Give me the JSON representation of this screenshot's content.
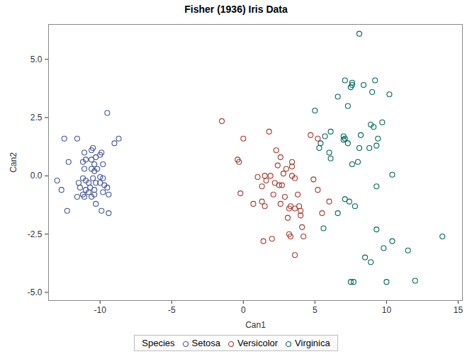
{
  "chart_data": {
    "type": "scatter",
    "title": "Fisher (1936) Iris Data",
    "x_label": "Can1",
    "y_label": "Can2",
    "xlim": [
      -13.6,
      15.3
    ],
    "ylim": [
      -5.35,
      6.5
    ],
    "xticks": [
      -10,
      -5,
      0,
      5,
      10,
      15
    ],
    "yticks": [
      {
        "value": 5,
        "label": "5.0"
      },
      {
        "value": 2.5,
        "label": "2.5"
      },
      {
        "value": 0,
        "label": "0.0"
      },
      {
        "value": -2.5,
        "label": "-2.5"
      },
      {
        "value": -5,
        "label": "-5.0"
      }
    ],
    "grid": false,
    "legend": "bottom",
    "legend_title": "Species",
    "series": [
      {
        "name": "Setosa",
        "color": "#445694",
        "marker": "circle",
        "x": [
          -9.5,
          -12.5,
          -11.6,
          -12.2,
          -8.7,
          -9.0,
          -13.0,
          -12.7,
          -12.3,
          -9.9,
          -10.0,
          -10.5,
          -10.6,
          -11.1,
          -11.0,
          -11.2,
          -10.6,
          -10.4,
          -11.1,
          -10.6,
          -10.3,
          -10.2,
          -10.4,
          -9.8,
          -10.5,
          -10.0,
          -9.8,
          -11.5,
          -11.2,
          -11.0,
          -10.8,
          -10.7,
          -10.3,
          -10.0,
          -9.7,
          -9.5,
          -11.4,
          -11.0,
          -10.4,
          -9.8,
          -11.6,
          -11.2,
          -11.1,
          -10.6,
          -10.4,
          -9.4,
          -10.3,
          -9.9,
          -9.4,
          -10.8
        ],
        "y": [
          2.7,
          1.6,
          1.6,
          0.6,
          1.6,
          1.4,
          -0.2,
          -0.6,
          -1.5,
          1.0,
          0.9,
          1.2,
          1.1,
          1.0,
          0.7,
          0.6,
          0.7,
          0.5,
          0.3,
          0.3,
          0.8,
          0.3,
          0.2,
          0.5,
          -0.1,
          -0.05,
          -0.1,
          -0.3,
          -0.1,
          -0.2,
          -0.3,
          -0.5,
          -0.3,
          -0.3,
          -0.4,
          -0.5,
          -0.5,
          -0.6,
          -0.6,
          -0.7,
          -0.9,
          -0.8,
          -0.9,
          -0.9,
          -0.8,
          -0.8,
          -1.2,
          -1.5,
          -1.6,
          -0.7
        ]
      },
      {
        "name": "Versicolor",
        "color": "#A23A2E",
        "marker": "circle",
        "x": [
          -1.5,
          0.0,
          1.8,
          4.7,
          5.2,
          -0.4,
          -0.3,
          -0.2,
          0.7,
          1.0,
          1.3,
          1.5,
          1.6,
          1.9,
          1.3,
          1.5,
          1.4,
          2.0,
          2.3,
          2.4,
          2.6,
          2.2,
          2.5,
          2.7,
          2.1,
          2.6,
          2.9,
          3.2,
          3.3,
          3.6,
          3.1,
          3.2,
          3.3,
          3.6,
          3.4,
          3.4,
          3.4,
          3.6,
          3.8,
          4.0,
          4.1,
          4.2,
          3.9,
          4.0,
          4.9,
          5.2,
          5.5,
          6.0,
          3.0,
          2.8
        ],
        "y": [
          2.35,
          1.6,
          1.9,
          1.75,
          1.6,
          0.7,
          0.6,
          -0.75,
          -1.2,
          -0.05,
          -0.45,
          0.0,
          -0.2,
          0.0,
          -1.1,
          -1.3,
          -2.8,
          -2.7,
          1.1,
          0.45,
          0.8,
          -0.3,
          -0.4,
          -0.4,
          -0.8,
          -1.2,
          -0.9,
          -1.4,
          -1.3,
          -1.4,
          -1.8,
          -2.5,
          -2.6,
          -3.4,
          0.6,
          0.4,
          0.0,
          -0.1,
          -0.8,
          -1.7,
          -2.2,
          -2.6,
          -1.3,
          -1.5,
          -0.15,
          -0.6,
          -1.6,
          -1.1,
          0.3,
          0.1
        ]
      },
      {
        "name": "Virginica",
        "color": "#01665E",
        "marker": "circle",
        "x": [
          8.1,
          7.1,
          7.6,
          7.6,
          7.5,
          9.2,
          8.4,
          6.6,
          9.0,
          10.2,
          5.0,
          7.3,
          9.7,
          8.9,
          9.1,
          5.7,
          5.4,
          5.3,
          6.0,
          6.1,
          7.0,
          7.1,
          7.0,
          7.3,
          8.8,
          8.1,
          9.4,
          9.3,
          7.6,
          8.0,
          10.4,
          5.6,
          6.6,
          7.1,
          7.4,
          7.8,
          9.3,
          9.3,
          10.4,
          9.8,
          8.5,
          8.9,
          11.5,
          13.9,
          12.0,
          10.0,
          7.5,
          7.7,
          6.1,
          8.2
        ],
        "y": [
          6.1,
          4.1,
          4.0,
          3.9,
          3.8,
          4.1,
          3.9,
          3.4,
          3.6,
          3.5,
          2.8,
          3.0,
          2.3,
          2.2,
          2.1,
          1.7,
          1.4,
          1.2,
          1.0,
          0.75,
          1.7,
          1.6,
          1.55,
          1.4,
          1.2,
          1.2,
          1.6,
          1.3,
          0.5,
          0.6,
          0.05,
          -2.25,
          -1.6,
          -1.0,
          -1.1,
          -1.3,
          -0.45,
          -2.3,
          -2.8,
          -3.1,
          -3.5,
          -3.7,
          -3.2,
          -2.6,
          -4.5,
          -4.55,
          -4.55,
          -4.55,
          1.9,
          1.75
        ]
      }
    ]
  }
}
